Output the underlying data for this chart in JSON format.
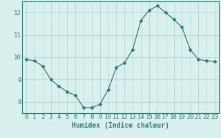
{
  "x": [
    0,
    1,
    2,
    3,
    4,
    5,
    6,
    7,
    8,
    9,
    10,
    11,
    12,
    13,
    14,
    15,
    16,
    17,
    18,
    19,
    20,
    21,
    22,
    23
  ],
  "y": [
    9.9,
    9.85,
    9.6,
    9.0,
    8.7,
    8.45,
    8.3,
    7.75,
    7.75,
    7.9,
    8.55,
    9.55,
    9.75,
    10.35,
    11.65,
    12.1,
    12.3,
    12.0,
    11.7,
    11.35,
    10.35,
    9.9,
    9.85,
    9.8
  ],
  "line_color": "#2e7d72",
  "marker": "D",
  "marker_size": 2.5,
  "bg_color": "#d8f0ee",
  "grid_color": "#c0d8d4",
  "xlabel": "Humidex (Indice chaleur)",
  "ylim": [
    7.5,
    12.5
  ],
  "xlim": [
    -0.5,
    23.5
  ],
  "yticks": [
    8,
    9,
    10,
    11,
    12
  ],
  "xticks": [
    0,
    1,
    2,
    3,
    4,
    5,
    6,
    7,
    8,
    9,
    10,
    11,
    12,
    13,
    14,
    15,
    16,
    17,
    18,
    19,
    20,
    21,
    22,
    23
  ],
  "spine_color": "#2e7d72",
  "tick_color": "#2e7d72",
  "label_color": "#2e7d72",
  "font_size": 6.5,
  "xlabel_fontsize": 7
}
